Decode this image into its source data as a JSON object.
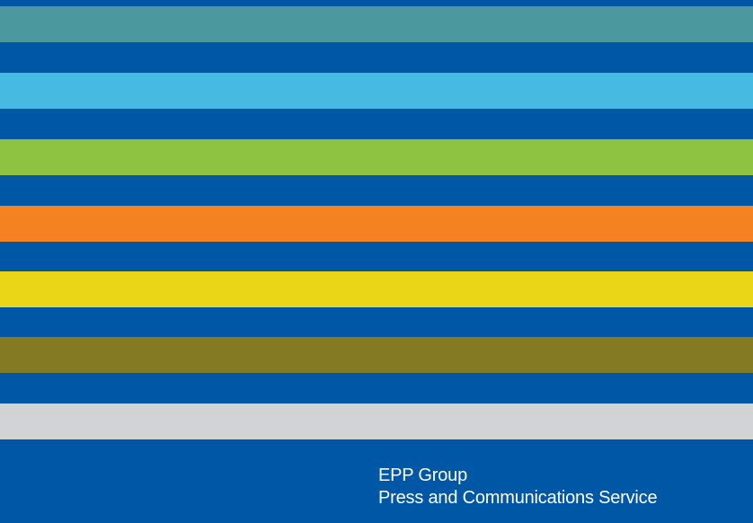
{
  "colors": {
    "background": "#0057A6",
    "stripes": [
      "#4B999E",
      "#47BAE1",
      "#8DC341",
      "#F58220",
      "#EAD516",
      "#857A24",
      "#D1D3D4"
    ]
  },
  "footer": {
    "organization": "EPP Group",
    "department": "Press and Communications Service"
  }
}
